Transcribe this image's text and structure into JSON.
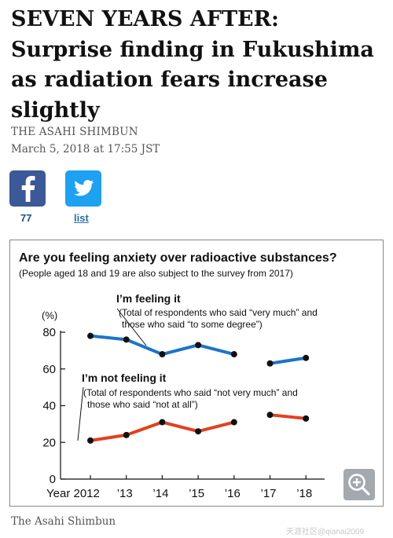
{
  "article": {
    "headline": "SEVEN YEARS AFTER: Surprise finding in Fukushima as radiation fears increase slightly",
    "byline": "THE ASAHI SHIMBUN",
    "dateline": "March 5, 2018 at 17:55 JST",
    "caption": "The Asahi Shimbun"
  },
  "share": {
    "facebook_icon": "facebook-icon",
    "facebook_count": "77",
    "twitter_icon": "twitter-icon",
    "twitter_label": "list"
  },
  "colors": {
    "facebook": "#3b5998",
    "twitter": "#1da1f2",
    "feeling_series": "#1b74c9",
    "not_feeling_series": "#e2411e"
  },
  "chart_data": {
    "type": "line",
    "title": "Are you feeling anxiety over radioactive substances?",
    "subtitle": "(People aged 18 and 19 are also subject to the survey from 2017)",
    "ylabel": "(%)",
    "ylim": [
      0,
      80
    ],
    "yticks": [
      "0",
      "20",
      "40",
      "60",
      "80"
    ],
    "categories": [
      "Year 2012",
      "’13",
      "’14",
      "’15",
      "’16",
      "’17",
      "’18"
    ],
    "x": [
      2012,
      2013,
      2014,
      2015,
      2016,
      2017,
      2018
    ],
    "grid": false,
    "series": [
      {
        "name": "I’m feeling it",
        "note_line1": "(Total of respondents who said “very much” and",
        "note_line2": "those who said “to some degree”)",
        "values": [
          78,
          76,
          68,
          73,
          68,
          63,
          66
        ],
        "segments": [
          [
            0,
            4
          ],
          [
            5,
            6
          ]
        ]
      },
      {
        "name": "I’m not feeling it",
        "note_line1": "(Total of respondents who said “not very much” and",
        "note_line2": "those who said “not at all”)",
        "values": [
          21,
          24,
          31,
          26,
          31,
          35,
          33
        ],
        "segments": [
          [
            0,
            4
          ],
          [
            5,
            6
          ]
        ]
      }
    ]
  },
  "zoom": {
    "icon": "zoom-in-icon"
  },
  "watermark": "天涯社区@qianai2009"
}
